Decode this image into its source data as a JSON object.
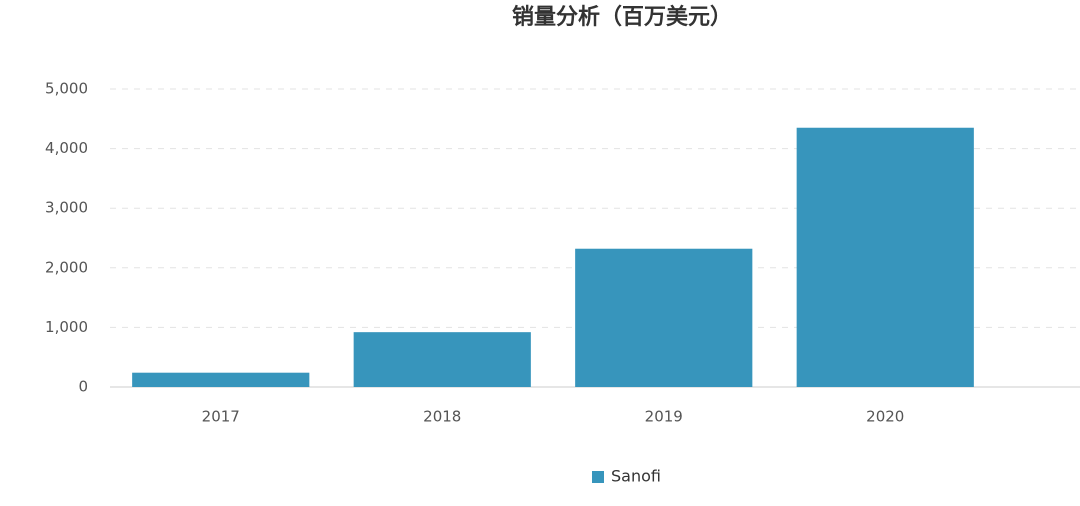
{
  "chart_data": {
    "type": "bar",
    "title": "销量分析（百万美元）",
    "categories": [
      "2017",
      "2018",
      "2019",
      "2020"
    ],
    "series": [
      {
        "name": "Sanofi",
        "color": "#3795bc",
        "values": [
          240,
          920,
          2320,
          4350
        ]
      }
    ],
    "ylim": [
      0,
      5000
    ],
    "yticks": [
      0,
      {
        "value": 1000,
        "label": "1,000"
      },
      {
        "value": 2000,
        "label": "2,000"
      },
      {
        "value": 3000,
        "label": "3,000"
      },
      {
        "value": 4000,
        "label": "4,000"
      },
      {
        "value": 5000,
        "label": "5,000"
      }
    ],
    "grid": true,
    "legend": "bottom"
  }
}
